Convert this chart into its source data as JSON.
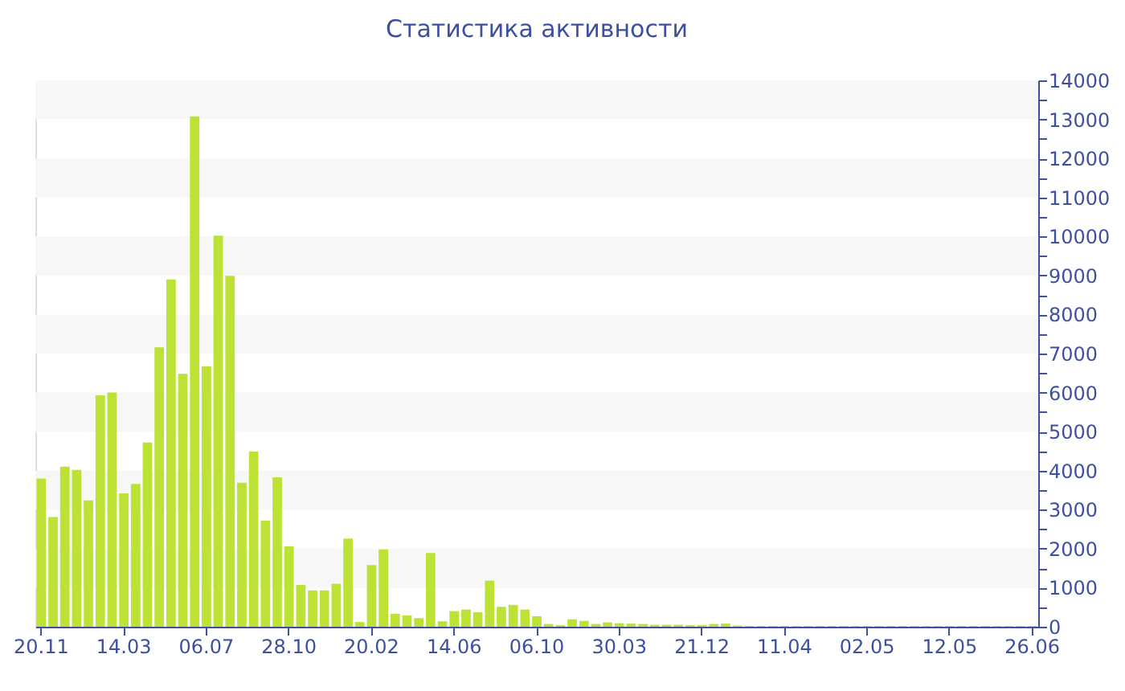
{
  "chart_data": {
    "type": "bar",
    "title": "Статистика активности",
    "categories": [
      "20.11",
      null,
      null,
      null,
      null,
      null,
      null,
      "14.03",
      null,
      null,
      null,
      null,
      null,
      null,
      "06.07",
      null,
      null,
      null,
      null,
      null,
      null,
      "28.10",
      null,
      null,
      null,
      null,
      null,
      null,
      "20.02",
      null,
      null,
      null,
      null,
      null,
      null,
      "14.06",
      null,
      null,
      null,
      null,
      null,
      null,
      "06.10",
      null,
      null,
      null,
      null,
      null,
      null,
      "30.03",
      null,
      null,
      null,
      null,
      null,
      null,
      "21.12",
      null,
      null,
      null,
      null,
      null,
      null,
      "11.04",
      null,
      null,
      null,
      null,
      null,
      null,
      "02.05",
      null,
      null,
      null,
      null,
      null,
      null,
      "12.05",
      null,
      null,
      null,
      null,
      null,
      null,
      "26.06"
    ],
    "values": [
      3800,
      2810,
      4100,
      4020,
      3240,
      5930,
      6000,
      3420,
      3660,
      4720,
      7160,
      8900,
      6480,
      13080,
      6670,
      10020,
      8990,
      3690,
      4490,
      2720,
      3830,
      2060,
      1070,
      930,
      930,
      1100,
      2260,
      120,
      1580,
      1980,
      330,
      290,
      220,
      1890,
      140,
      400,
      440,
      370,
      1180,
      510,
      560,
      440,
      270,
      70,
      40,
      190,
      150,
      70,
      110,
      90,
      80,
      70,
      50,
      50,
      50,
      40,
      40,
      70,
      80,
      30,
      20,
      20,
      20,
      20,
      20,
      20,
      20,
      20,
      20,
      20,
      20,
      20,
      20,
      20,
      20,
      20,
      20,
      20,
      20,
      20,
      20,
      20,
      20,
      20,
      20
    ],
    "color": "#bde236",
    "ylim": [
      0,
      14000
    ],
    "yticks": [
      0,
      {
        "value": 500,
        "label": null
      },
      1000,
      {
        "value": 1500,
        "label": null
      },
      2000,
      {
        "value": 2500,
        "label": null
      },
      3000,
      {
        "value": 3500,
        "label": null
      },
      4000,
      {
        "value": 4500,
        "label": null
      },
      5000,
      {
        "value": 5500,
        "label": null
      },
      6000,
      {
        "value": 6500,
        "label": null
      },
      7000,
      {
        "value": 7500,
        "label": null
      },
      8000,
      {
        "value": 8500,
        "label": null
      },
      9000,
      {
        "value": 9500,
        "label": null
      },
      10000,
      {
        "value": 10500,
        "label": null
      },
      11000,
      {
        "value": 11500,
        "label": null
      },
      12000,
      {
        "value": 12500,
        "label": null
      },
      13000,
      {
        "value": 13500,
        "label": null
      },
      14000
    ],
    "bands": [
      {
        "axis": "y",
        "from": 1000,
        "to": 2000,
        "color": "#f7f7f7"
      },
      {
        "axis": "y",
        "from": 3000,
        "to": 4000,
        "color": "#f7f7f7"
      },
      {
        "axis": "y",
        "from": 5000,
        "to": 6000,
        "color": "#f7f7f7"
      },
      {
        "axis": "y",
        "from": 7000,
        "to": 8000,
        "color": "#f7f7f7"
      },
      {
        "axis": "y",
        "from": 9000,
        "to": 10000,
        "color": "#f7f7f7"
      },
      {
        "axis": "y",
        "from": 11000,
        "to": 12000,
        "color": "#f7f7f7"
      },
      {
        "axis": "y",
        "from": 13000,
        "to": 14000,
        "color": "#f7f7f7"
      }
    ],
    "grid": false
  }
}
